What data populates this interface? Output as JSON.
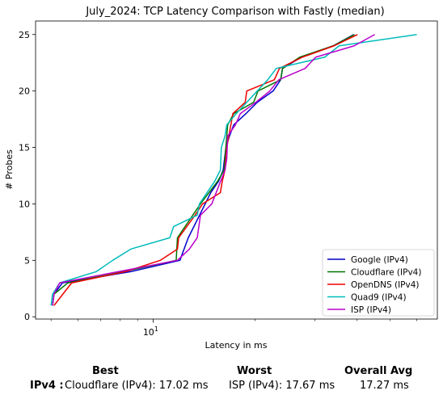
{
  "chart_data": {
    "type": "line",
    "title": "July_2024: TCP Latency Comparison with Fastly (median)",
    "xlabel": "Latency in ms",
    "ylabel": "# Probes",
    "xscale": "log",
    "xlim": [
      4.5,
      69
    ],
    "ylim": [
      -0.2,
      26.2
    ],
    "yticks": [
      0,
      5,
      10,
      15,
      20,
      25
    ],
    "xtick_labels": [
      {
        "value": 10,
        "label": "10^1"
      }
    ],
    "grid": false,
    "legend_position": "lower right",
    "series": [
      {
        "name": "Google (IPv4)",
        "color": "#0000cc",
        "points": [
          [
            5.05,
            1
          ],
          [
            5.1,
            2
          ],
          [
            5.4,
            3
          ],
          [
            8.6,
            4
          ],
          [
            12.0,
            5
          ],
          [
            12.7,
            7
          ],
          [
            13.2,
            8
          ],
          [
            14.8,
            11
          ],
          [
            15.6,
            12
          ],
          [
            16.1,
            13
          ],
          [
            16.4,
            15
          ],
          [
            16.8,
            16
          ],
          [
            17.3,
            17
          ],
          [
            18.8,
            18
          ],
          [
            20.3,
            19
          ],
          [
            22.6,
            20
          ],
          [
            23.8,
            21
          ],
          [
            24.1,
            22
          ],
          [
            27.4,
            23
          ],
          [
            34.0,
            24
          ],
          [
            39.1,
            25
          ]
        ]
      },
      {
        "name": "Cloudflare (IPv4)",
        "color": "#007700",
        "points": [
          [
            5.05,
            1
          ],
          [
            5.1,
            2
          ],
          [
            5.6,
            3
          ],
          [
            8.2,
            4
          ],
          [
            11.7,
            5
          ],
          [
            11.8,
            7
          ],
          [
            13.8,
            10
          ],
          [
            15.5,
            12
          ],
          [
            16.2,
            13
          ],
          [
            16.6,
            17
          ],
          [
            17.3,
            18
          ],
          [
            19.8,
            19
          ],
          [
            20.4,
            20
          ],
          [
            23.8,
            21
          ],
          [
            24.1,
            22
          ],
          [
            27.1,
            23
          ],
          [
            34.0,
            24
          ],
          [
            39.3,
            25
          ]
        ]
      },
      {
        "name": "OpenDNS (IPv4)",
        "color": "#ee0000",
        "points": [
          [
            5.1,
            1
          ],
          [
            5.75,
            3
          ],
          [
            8.3,
            4
          ],
          [
            10.5,
            5
          ],
          [
            11.8,
            6
          ],
          [
            11.9,
            7
          ],
          [
            13.3,
            9
          ],
          [
            14.0,
            10
          ],
          [
            15.8,
            11
          ],
          [
            16.0,
            12
          ],
          [
            16.3,
            13
          ],
          [
            16.5,
            15
          ],
          [
            17.2,
            18
          ],
          [
            18.7,
            19
          ],
          [
            18.9,
            20
          ],
          [
            22.8,
            21
          ],
          [
            23.6,
            22
          ],
          [
            27.6,
            23
          ],
          [
            34.2,
            24
          ],
          [
            40.1,
            25
          ]
        ]
      },
      {
        "name": "Quad9 (IPv4)",
        "color": "#00bbbb",
        "points": [
          [
            5.0,
            1
          ],
          [
            5.05,
            2
          ],
          [
            5.3,
            3
          ],
          [
            6.8,
            4
          ],
          [
            7.6,
            5
          ],
          [
            8.6,
            6
          ],
          [
            11.2,
            7
          ],
          [
            11.5,
            8
          ],
          [
            13.5,
            9
          ],
          [
            13.7,
            10
          ],
          [
            15.2,
            12
          ],
          [
            15.8,
            13
          ],
          [
            15.9,
            15
          ],
          [
            16.3,
            16
          ],
          [
            16.5,
            17
          ],
          [
            17.6,
            18
          ],
          [
            21.8,
            21
          ],
          [
            23.1,
            22
          ],
          [
            32.1,
            23
          ],
          [
            35.4,
            24
          ],
          [
            60.0,
            25
          ]
        ]
      },
      {
        "name": "ISP (IPv4)",
        "color": "#bb00cc",
        "points": [
          [
            5.05,
            1
          ],
          [
            5.1,
            2
          ],
          [
            5.3,
            3
          ],
          [
            11.8,
            5
          ],
          [
            12.8,
            6
          ],
          [
            13.5,
            7
          ],
          [
            13.8,
            9
          ],
          [
            14.9,
            10
          ],
          [
            16.3,
            13
          ],
          [
            16.5,
            14
          ],
          [
            16.6,
            16
          ],
          [
            17.5,
            17
          ],
          [
            18.1,
            18
          ],
          [
            20.1,
            19
          ],
          [
            22.1,
            20
          ],
          [
            23.5,
            21
          ],
          [
            28.1,
            22
          ],
          [
            30.2,
            23
          ],
          [
            39.2,
            24
          ],
          [
            45.1,
            25
          ]
        ]
      }
    ]
  },
  "summary": {
    "headers": {
      "best": "Best",
      "worst": "Worst",
      "overall": "Overall Avg"
    },
    "row_label": "IPv4 :",
    "best": "Cloudflare (IPv4): 17.02 ms",
    "worst": "ISP (IPv4): 17.67 ms",
    "overall": "17.27 ms"
  }
}
